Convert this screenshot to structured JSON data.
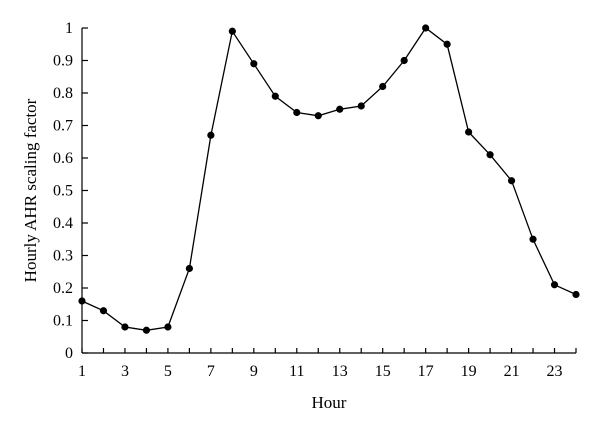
{
  "chart_data": {
    "type": "line",
    "title": "",
    "xlabel": "Hour",
    "ylabel": "Hourly AHR scaling factor",
    "xlim": [
      1,
      24
    ],
    "ylim": [
      0,
      1
    ],
    "x_ticks": [
      1,
      3,
      5,
      7,
      9,
      11,
      13,
      15,
      17,
      19,
      21,
      23
    ],
    "y_ticks": [
      0,
      0.1,
      0.2,
      0.3,
      0.4,
      0.5,
      0.6,
      0.7,
      0.8,
      0.9,
      1
    ],
    "y_tick_labels": [
      "0",
      "0.1",
      "0.2",
      "0.3",
      "0.4",
      "0.5",
      "0.6",
      "0.7",
      "0.8",
      "0.9",
      "1"
    ],
    "grid": false,
    "legend": "none",
    "colors": {
      "series": "#000000"
    },
    "series": [
      {
        "x": [
          1,
          2,
          3,
          4,
          5,
          6,
          7,
          8,
          9,
          10,
          11,
          12,
          13,
          14,
          15,
          16,
          17,
          18,
          19,
          20,
          21,
          22,
          23,
          24
        ],
        "values": [
          0.16,
          0.13,
          0.08,
          0.07,
          0.08,
          0.26,
          0.67,
          0.99,
          0.89,
          0.79,
          0.74,
          0.73,
          0.75,
          0.76,
          0.82,
          0.9,
          1.0,
          0.95,
          0.68,
          0.61,
          0.53,
          0.35,
          0.21,
          0.18
        ]
      }
    ]
  }
}
